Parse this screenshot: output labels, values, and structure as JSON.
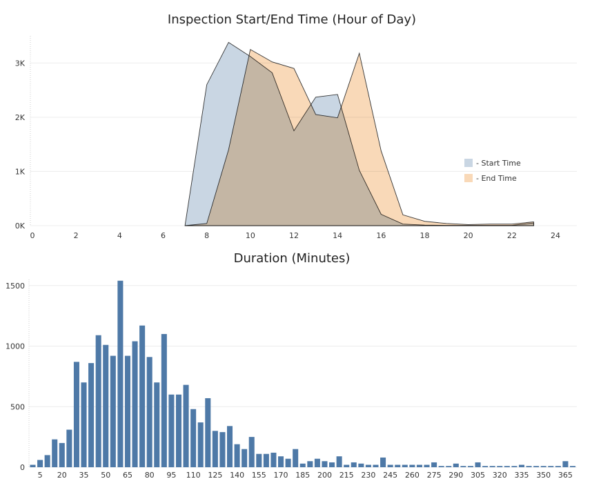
{
  "chart_data": [
    {
      "type": "area",
      "title": "Inspection Start/End Time (Hour of Day)",
      "xlim": [
        0,
        24
      ],
      "ylim": [
        0,
        3500
      ],
      "x_ticks": [
        0,
        2,
        4,
        6,
        8,
        10,
        12,
        14,
        16,
        18,
        20,
        22,
        24
      ],
      "y_ticks": [
        0,
        1000,
        2000,
        3000
      ],
      "y_tick_labels": [
        "0K",
        "1K",
        "2K",
        "3K"
      ],
      "x": [
        7,
        8,
        9,
        10,
        11,
        12,
        13,
        14,
        15,
        16,
        17,
        18,
        19,
        20,
        21,
        22,
        23
      ],
      "series": [
        {
          "name": "- Start Time",
          "color": "#c9d6e3",
          "values": [
            0,
            2600,
            3380,
            3120,
            2820,
            1750,
            2370,
            2420,
            1020,
            210,
            30,
            10,
            5,
            5,
            5,
            5,
            50
          ]
        },
        {
          "name": "- End Time",
          "color": "#f9d9b8",
          "values": [
            0,
            40,
            1400,
            3250,
            3020,
            2900,
            2050,
            1990,
            3180,
            1380,
            200,
            80,
            40,
            20,
            30,
            30,
            70
          ]
        }
      ],
      "legend": "right",
      "grid": true
    },
    {
      "type": "bar",
      "title": "Duration (Minutes)",
      "ylim": [
        0,
        1550
      ],
      "y_ticks": [
        0,
        500,
        1000,
        1500
      ],
      "y_tick_labels": [
        "0",
        "500",
        "1000",
        "1500"
      ],
      "x_tick_labels": [
        "5",
        "20",
        "35",
        "50",
        "65",
        "80",
        "95",
        "110",
        "125",
        "140",
        "155",
        "170",
        "185",
        "200",
        "215",
        "230",
        "245",
        "260",
        "275",
        "290",
        "305",
        "320",
        "335",
        "350",
        "365"
      ],
      "color": "#4e79a7",
      "values": [
        20,
        60,
        100,
        230,
        200,
        310,
        870,
        700,
        860,
        1090,
        1010,
        920,
        1540,
        920,
        1040,
        1170,
        910,
        700,
        1100,
        600,
        600,
        680,
        480,
        370,
        570,
        300,
        290,
        340,
        190,
        150,
        250,
        110,
        110,
        120,
        90,
        70,
        150,
        30,
        50,
        70,
        50,
        40,
        90,
        20,
        40,
        30,
        20,
        20,
        80,
        20,
        20,
        20,
        20,
        20,
        20,
        40,
        10,
        10,
        30,
        10,
        10,
        40,
        10,
        10,
        10,
        10,
        10,
        20,
        10,
        10,
        10,
        10,
        10,
        50,
        10
      ],
      "grid": true
    }
  ]
}
